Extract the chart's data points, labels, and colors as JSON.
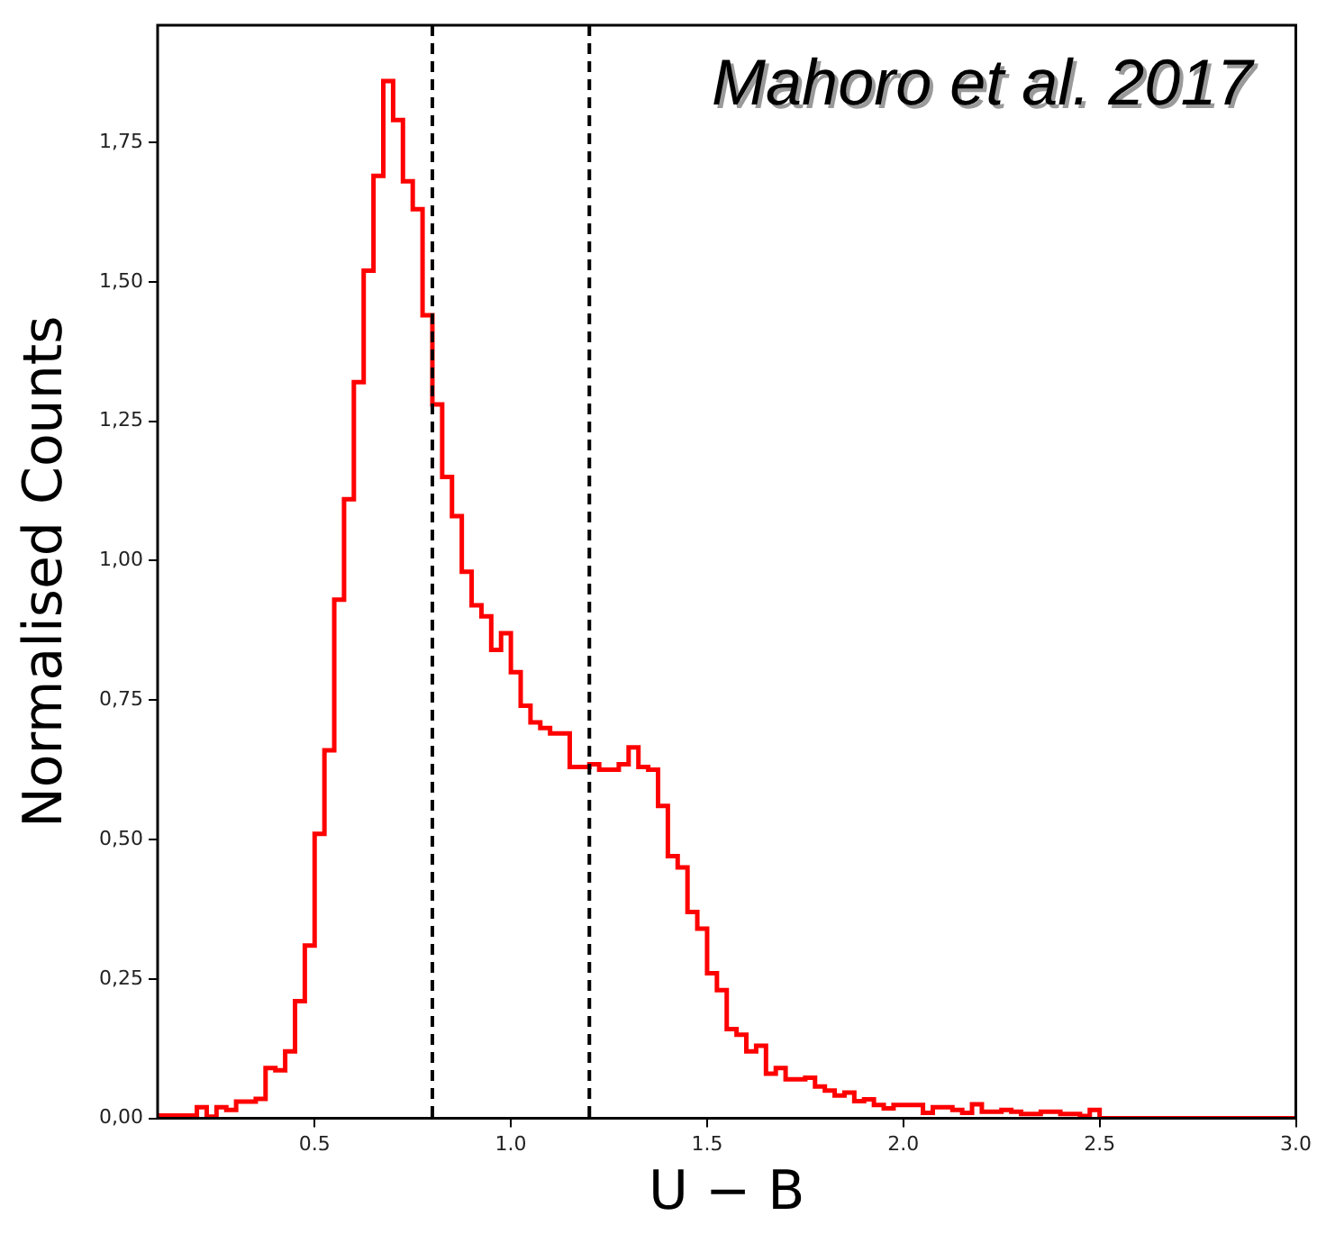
{
  "chart_data": {
    "type": "histogram",
    "xlabel": "U − B",
    "ylabel": "Normalised Counts",
    "annotations": [
      "Mahoro et al. 2017"
    ],
    "color": "#ff0000",
    "bins": [
      0.1,
      0.125,
      0.15,
      0.175,
      0.2,
      0.225,
      0.25,
      0.275,
      0.3,
      0.325,
      0.35,
      0.375,
      0.4,
      0.425,
      0.45,
      0.475,
      0.5,
      0.525,
      0.55,
      0.575,
      0.6,
      0.625,
      0.65,
      0.675,
      0.7,
      0.725,
      0.75,
      0.775,
      0.8,
      0.825,
      0.85,
      0.875,
      0.9,
      0.925,
      0.95,
      0.975,
      1.0,
      1.025,
      1.05,
      1.075,
      1.1,
      1.125,
      1.15,
      1.175,
      1.2,
      1.225,
      1.25,
      1.275,
      1.3,
      1.325,
      1.35,
      1.375,
      1.4,
      1.425,
      1.45,
      1.475,
      1.5,
      1.525,
      1.55,
      1.575,
      1.6,
      1.625,
      1.65,
      1.675,
      1.7,
      1.725,
      1.75,
      1.775,
      1.8,
      1.825,
      1.85,
      1.875,
      1.9,
      1.925,
      1.95,
      1.975,
      2.0,
      2.025,
      2.05,
      2.075,
      2.1,
      2.125,
      2.15,
      2.175,
      2.2,
      2.225,
      2.25,
      2.275,
      2.3,
      2.325,
      2.35,
      2.375,
      2.4,
      2.425,
      2.45,
      2.475,
      2.5,
      2.525,
      2.55,
      2.575,
      2.6,
      2.625,
      2.65,
      2.675,
      2.7,
      2.725,
      2.75,
      2.775,
      2.8,
      2.825,
      2.85,
      2.875,
      2.9,
      2.925,
      2.95,
      2.975,
      3.0
    ],
    "values": [
      0.005,
      0.005,
      0.005,
      0.005,
      0.02,
      0.003,
      0.02,
      0.015,
      0.03,
      0.03,
      0.035,
      0.09,
      0.086,
      0.12,
      0.21,
      0.31,
      0.51,
      0.66,
      0.93,
      1.11,
      1.32,
      1.52,
      1.69,
      1.86,
      1.79,
      1.68,
      1.63,
      1.44,
      1.28,
      1.15,
      1.08,
      0.98,
      0.92,
      0.9,
      0.84,
      0.87,
      0.8,
      0.74,
      0.71,
      0.7,
      0.69,
      0.69,
      0.63,
      0.63,
      0.635,
      0.625,
      0.625,
      0.635,
      0.665,
      0.63,
      0.625,
      0.56,
      0.47,
      0.45,
      0.37,
      0.34,
      0.26,
      0.23,
      0.16,
      0.15,
      0.12,
      0.13,
      0.08,
      0.09,
      0.07,
      0.07,
      0.073,
      0.057,
      0.05,
      0.041,
      0.046,
      0.031,
      0.034,
      0.024,
      0.018,
      0.024,
      0.024,
      0.024,
      0.01,
      0.02,
      0.02,
      0.015,
      0.01,
      0.025,
      0.012,
      0.012,
      0.015,
      0.012,
      0.008,
      0.008,
      0.012,
      0.012,
      0.008,
      0.008,
      0.004,
      0.015,
      0,
      0,
      0,
      0,
      0,
      0,
      0,
      0,
      0,
      0,
      0,
      0,
      0,
      0,
      0,
      0,
      0,
      0,
      0,
      0
    ],
    "xlim": [
      0.1,
      3.0
    ],
    "xticks": [
      0.5,
      {
        "value": 1,
        "label": "1.0"
      },
      1.5,
      {
        "value": 2,
        "label": "2.0"
      },
      2.5,
      {
        "value": 3,
        "label": "3.0"
      }
    ],
    "ylim": [
      0,
      1.96
    ],
    "yticks": [
      {
        "value": 0,
        "label": "0,00"
      },
      {
        "value": 0.25,
        "label": "0,25"
      },
      {
        "value": 0.5,
        "label": "0,50"
      },
      {
        "value": 0.75,
        "label": "0,75"
      },
      {
        "value": 1,
        "label": "1,00"
      },
      {
        "value": 1.25,
        "label": "1,25"
      },
      {
        "value": 1.5,
        "label": "1,50"
      },
      {
        "value": 1.75,
        "label": "1,75"
      }
    ],
    "ref_lines": [
      {
        "axis": "x",
        "value": 0.8,
        "color": "#000000",
        "line_style": "dashed"
      },
      {
        "axis": "x",
        "value": 1.2,
        "color": "#000000",
        "line_style": "dashed"
      }
    ],
    "grid": false,
    "legend": false
  }
}
